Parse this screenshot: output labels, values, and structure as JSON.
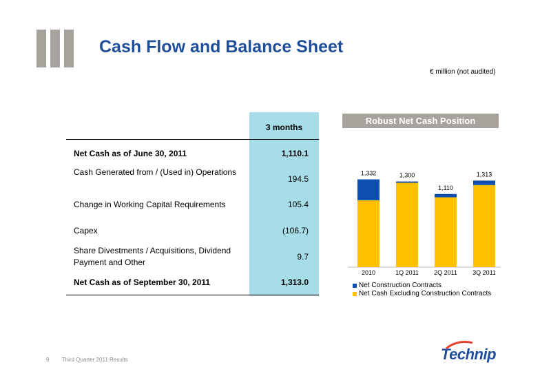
{
  "header": {
    "title": "Cash Flow and Balance Sheet",
    "unit_note": "€ million (not audited)"
  },
  "table": {
    "column_header": "3 months",
    "rows": [
      {
        "label": "Net Cash as of June 30, 2011",
        "value": "1,110.1"
      },
      {
        "label": "Cash Generated from / (Used in) Operations",
        "value": "194.5"
      },
      {
        "label": "Change in Working Capital Requirements",
        "value": "105.4"
      },
      {
        "label": "Capex",
        "value": "(106.7)"
      },
      {
        "label": "Share Divestments / Acquisitions, Dividend Payment and Other",
        "value": "9.7"
      },
      {
        "label": "Net Cash as of September 30, 2011",
        "value": "1,313.0"
      }
    ]
  },
  "chart_header": "Robust Net Cash Position",
  "chart_data": {
    "type": "bar",
    "stacked": true,
    "categories": [
      "2010",
      "1Q 2011",
      "2Q 2011",
      "3Q 2011"
    ],
    "totals": [
      "1,332",
      "1,300",
      "1,110",
      "1,313"
    ],
    "series": [
      {
        "name": "Net Cash Excluding Construction Contracts",
        "color": "#ffc000",
        "values": [
          1015,
          1280,
          1060,
          1245
        ]
      },
      {
        "name": "Net Construction Contracts",
        "color": "#0d4fb1",
        "values": [
          317,
          20,
          50,
          68
        ]
      }
    ],
    "legend_order": [
      "Net Construction Contracts",
      "Net Cash Excluding Construction Contracts"
    ],
    "ylim": [
      0,
      1400
    ],
    "grid": false,
    "legend_position": "bottom"
  },
  "footer": {
    "page_number": "9",
    "label": "Third Quarter 2011 Results"
  },
  "logo": {
    "text": "Technip",
    "color": "#1f4e9b"
  }
}
